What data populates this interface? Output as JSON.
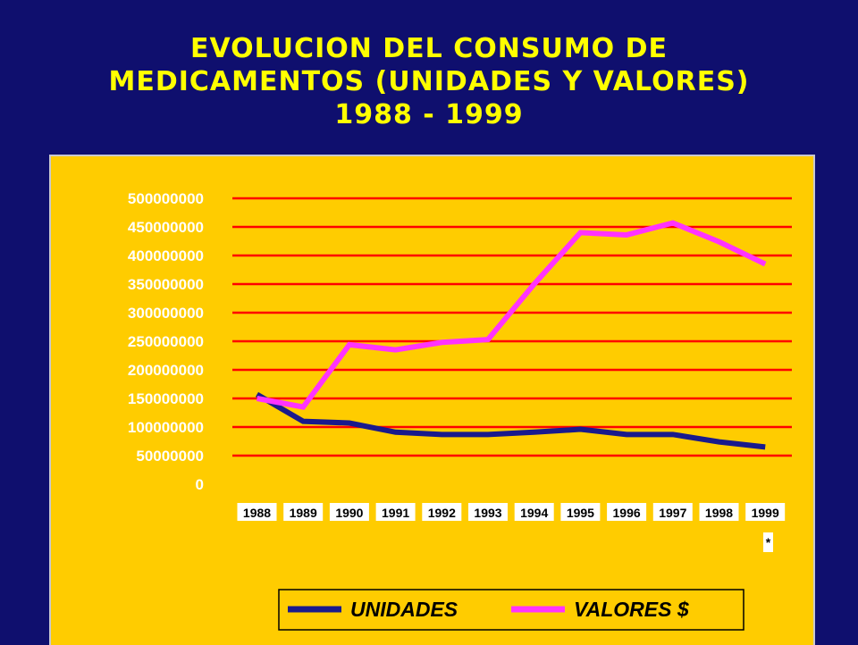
{
  "title": {
    "line1": "EVOLUCION DEL CONSUMO DE",
    "line2": "MEDICAMENTOS (UNIDADES Y VALORES)",
    "line3": "1988 - 1999"
  },
  "colors": {
    "background": "#0f0f6e",
    "plot": "#ffcc00",
    "grid": "#ff0000",
    "unidades": "#1a1a8c",
    "valores": "#ff33ff"
  },
  "chart_data": {
    "type": "line",
    "categories": [
      "1988",
      "1989",
      "1990",
      "1991",
      "1992",
      "1993",
      "1994",
      "1995",
      "1996",
      "1997",
      "1998",
      "1999"
    ],
    "yticks": [
      "500000000",
      "450000000",
      "400000000",
      "350000000",
      "300000000",
      "250000000",
      "200000000",
      "150000000",
      "100000000",
      "50000000",
      "0"
    ],
    "ylim": [
      0,
      500000000
    ],
    "grid": true,
    "legend_position": "bottom",
    "annotation": "*",
    "series": [
      {
        "name": "UNIDADES",
        "color": "#1a1a8c",
        "values": [
          157000000,
          110000000,
          107000000,
          91000000,
          87000000,
          87000000,
          91000000,
          96000000,
          87000000,
          87000000,
          74000000,
          65000000
        ]
      },
      {
        "name": "VALORES $",
        "color": "#ff33ff",
        "values": [
          150000000,
          135000000,
          244000000,
          235000000,
          248000000,
          253000000,
          350000000,
          440000000,
          436000000,
          457000000,
          424000000,
          385000000
        ]
      }
    ]
  }
}
